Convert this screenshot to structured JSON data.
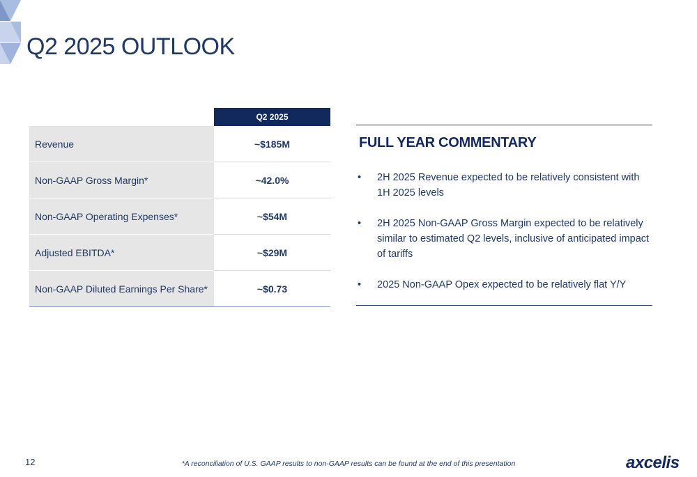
{
  "page": {
    "title": "Q2 2025 OUTLOOK",
    "page_number": "12",
    "footnote": "*A reconciliation of U.S. GAAP results to non-GAAP results can be found at the end of this presentation",
    "logo_text": "axcelis"
  },
  "outlook_table": {
    "period_header": "Q2 2025",
    "rows": [
      {
        "label": "Revenue",
        "value": "~$185M"
      },
      {
        "label": "Non-GAAP Gross Margin*",
        "value": "~42.0%"
      },
      {
        "label": "Non-GAAP Operating Expenses*",
        "value": "~$54M"
      },
      {
        "label": "Adjusted EBITDA*",
        "value": "~$29M"
      },
      {
        "label": "Non-GAAP Diluted Earnings Per Share*",
        "value": "~$0.73"
      }
    ]
  },
  "commentary": {
    "title": "FULL YEAR COMMENTARY",
    "bullet_glyph": "•",
    "bullets": [
      "2H 2025 Revenue expected to be relatively consistent with 1H 2025 levels",
      "2H 2025 Non-GAAP Gross Margin expected to be relatively similar to estimated Q2 levels, inclusive of anticipated impact of tariffs",
      "2025 Non-GAAP Opex expected to be relatively flat Y/Y"
    ]
  },
  "colors": {
    "navy": "#12295e",
    "text_blue": "#1f3864",
    "row_gray": "#e6e6e6",
    "deco_light": "#a9bde0",
    "deco_mid": "#7d97c9"
  },
  "icons": {
    "corner": "triangle-pattern-decoration"
  }
}
